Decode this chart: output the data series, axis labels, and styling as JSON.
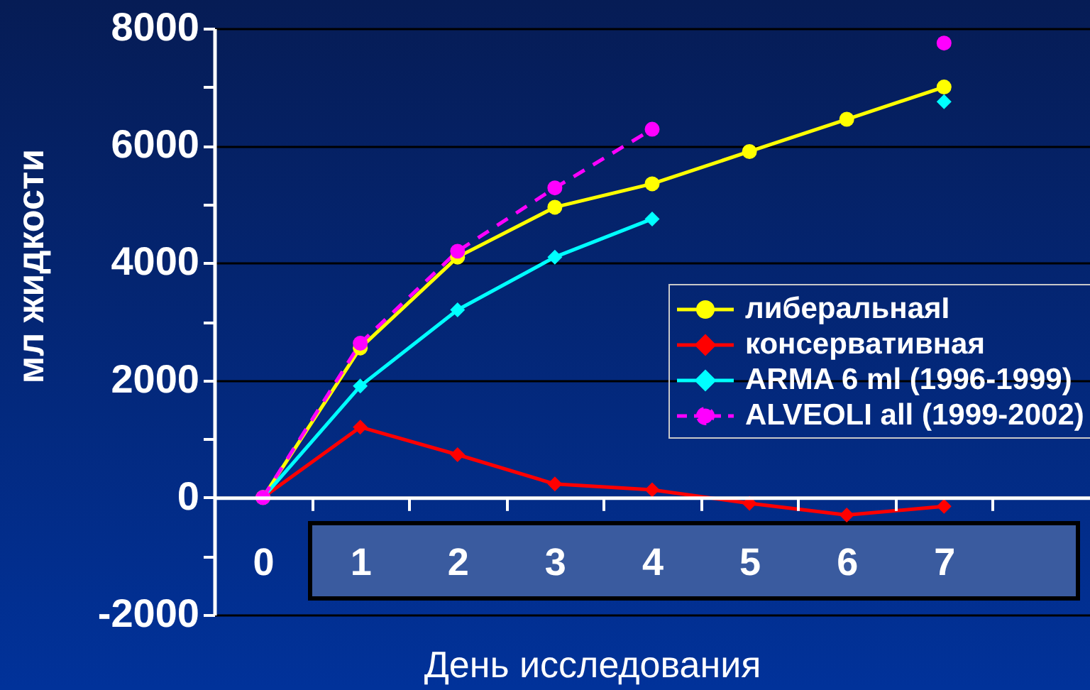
{
  "chart_data": {
    "type": "line",
    "xlabel": "День исследования",
    "ylabel": "мл жидкости",
    "categories": [
      "0",
      "1",
      "2",
      "3",
      "4",
      "5",
      "6",
      "7"
    ],
    "ylim": [
      -2000,
      8000
    ],
    "yticks": [
      -2000,
      {
        "value": -1000,
        "label": null
      },
      0,
      {
        "value": 1000,
        "label": null
      },
      2000,
      {
        "value": 3000,
        "label": null
      },
      4000,
      {
        "value": 5000,
        "label": null
      },
      6000,
      {
        "value": 7000,
        "label": null
      },
      8000
    ],
    "grid": "y",
    "legend": "right",
    "series": [
      {
        "name": "либеральнаяI",
        "color": "#ffff00",
        "marker": "circle",
        "line_style": "solid",
        "values": [
          0,
          2550,
          4100,
          4950,
          5350,
          5900,
          6450,
          7000
        ]
      },
      {
        "name": "консервативная",
        "color": "#ff0000",
        "marker": "diamond",
        "line_style": "solid",
        "values": [
          0,
          1200,
          730,
          230,
          130,
          -100,
          -300,
          -150
        ]
      },
      {
        "name": "ARMA 6 ml (1996-1999)",
        "color": "#00ffff",
        "marker": "diamond",
        "line_style": "solid",
        "values": [
          0,
          1900,
          3200,
          4100,
          4750,
          null,
          null,
          6750
        ]
      },
      {
        "name": "ALVEOLI all (1999-2002)",
        "color": "#ff00ff",
        "marker": "circle",
        "line_style": "dashed",
        "values": [
          0,
          2630,
          4200,
          5280,
          6280,
          null,
          null,
          7750
        ]
      }
    ]
  }
}
